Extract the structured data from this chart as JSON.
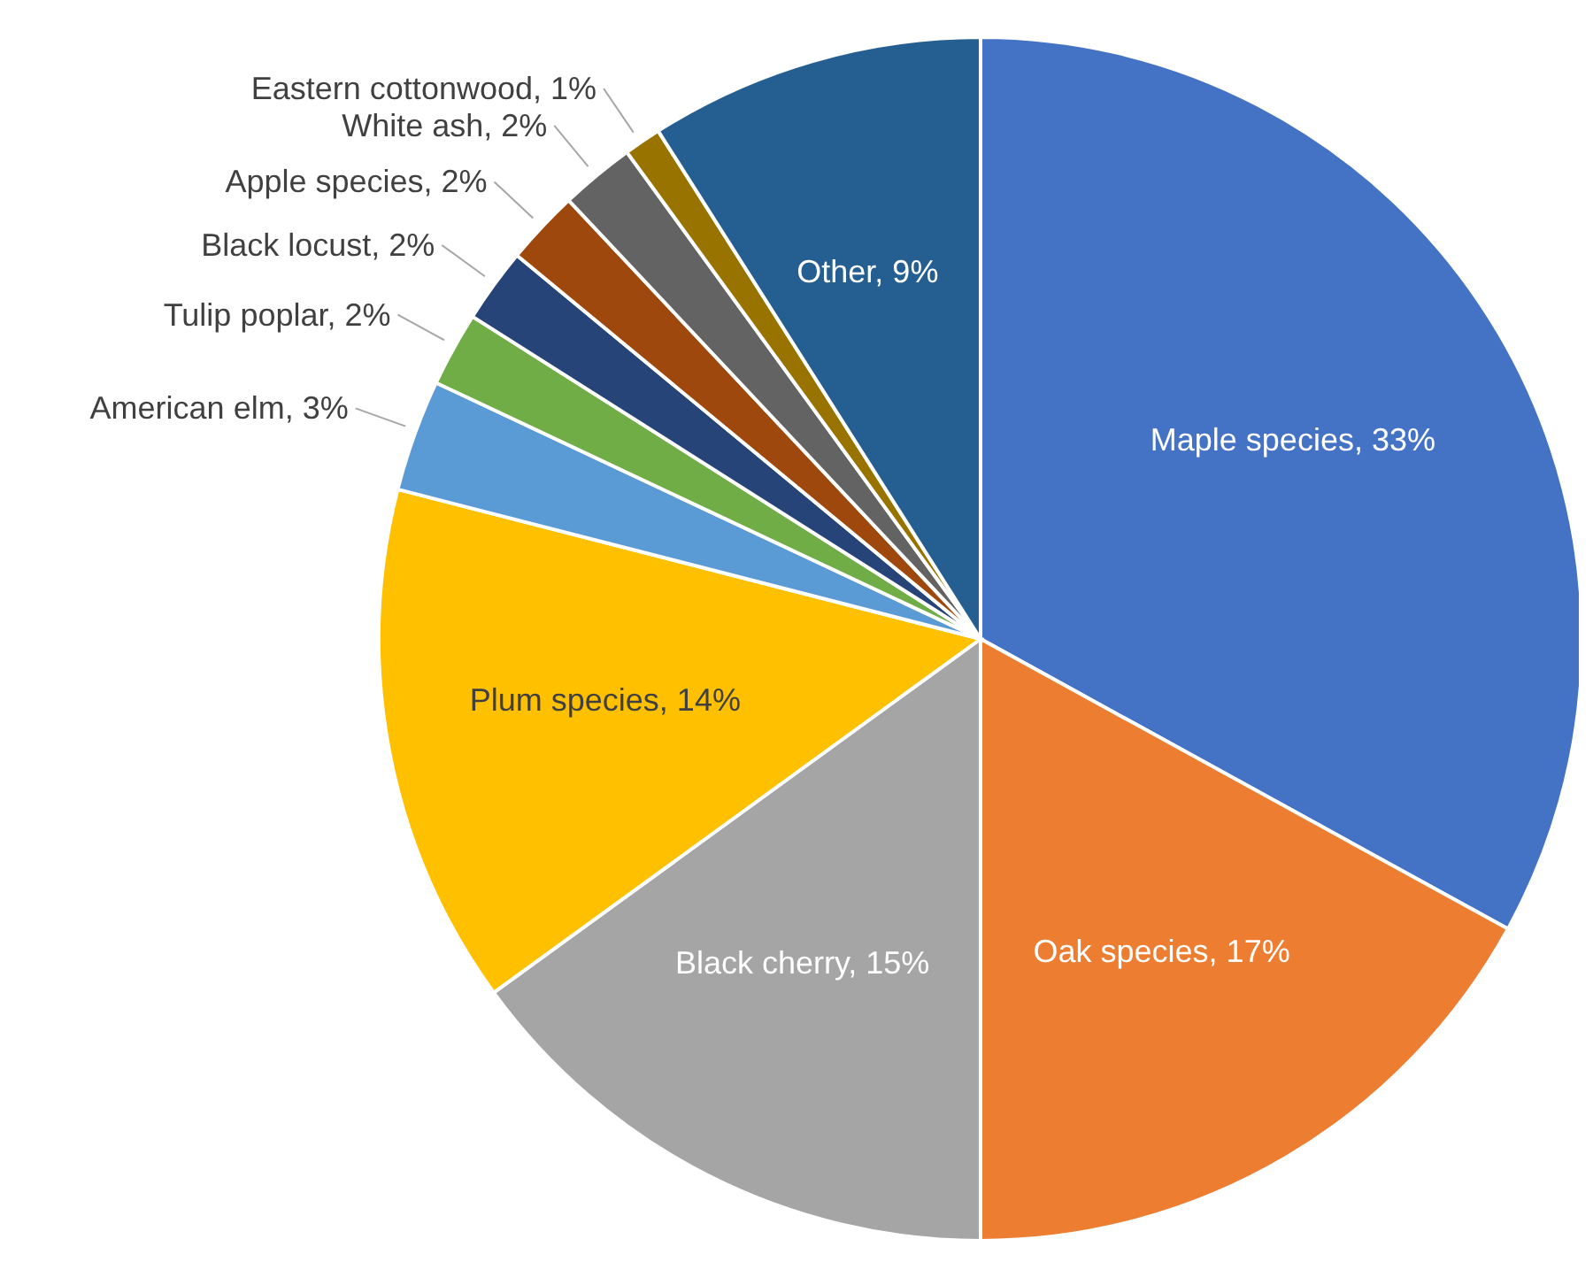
{
  "chart_data": {
    "type": "pie",
    "categories": [
      "Maple species",
      "Oak species",
      "Black cherry",
      "Plum species",
      "American elm",
      "Tulip poplar",
      "Black locust",
      "Apple species",
      "White ash",
      "Eastern cottonwood",
      "Other"
    ],
    "values": [
      33,
      17,
      15,
      14,
      3,
      2,
      2,
      2,
      2,
      1,
      9
    ],
    "value_labels": [
      "33%",
      "17%",
      "15%",
      "14%",
      "3%",
      "2%",
      "2%",
      "2%",
      "2%",
      "1%",
      "9%"
    ],
    "colors": [
      "#4472c4",
      "#ed7d31",
      "#a5a5a5",
      "#ffc000",
      "#5b9bd5",
      "#70ad47",
      "#264478",
      "#9e480e",
      "#636363",
      "#997300",
      "#255e91"
    ],
    "legend": false
  }
}
